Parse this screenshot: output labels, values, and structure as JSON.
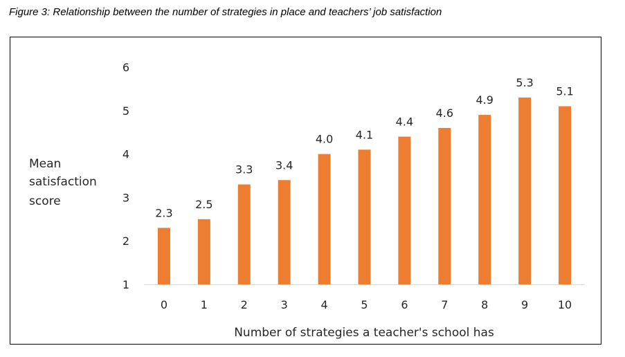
{
  "figure_title": "Figure 3: Relationship between the number of strategies in place and teachers’ job satisfaction",
  "colors": {
    "bar": "#ED7D31",
    "axis": "#D9D9D9",
    "frame": "#000000",
    "text": "#262626"
  },
  "chart_data": {
    "type": "bar",
    "categories": [
      "0",
      "1",
      "2",
      "3",
      "4",
      "5",
      "6",
      "7",
      "8",
      "9",
      "10"
    ],
    "values": [
      2.3,
      2.5,
      3.3,
      3.4,
      4.0,
      4.1,
      4.4,
      4.6,
      4.9,
      5.3,
      5.1
    ],
    "data_labels": [
      "2.3",
      "2.5",
      "3.3",
      "3.4",
      "4.0",
      "4.1",
      "4.4",
      "4.6",
      "4.9",
      "5.3",
      "5.1"
    ],
    "xlabel": "Number of strategies a teacher's school has",
    "ylabel_lines": [
      "Mean",
      "satisfaction",
      "score"
    ],
    "ylim": [
      1,
      6
    ],
    "yticks": [
      1,
      2,
      3,
      4,
      5,
      6
    ],
    "grid": false,
    "legend": "none"
  }
}
